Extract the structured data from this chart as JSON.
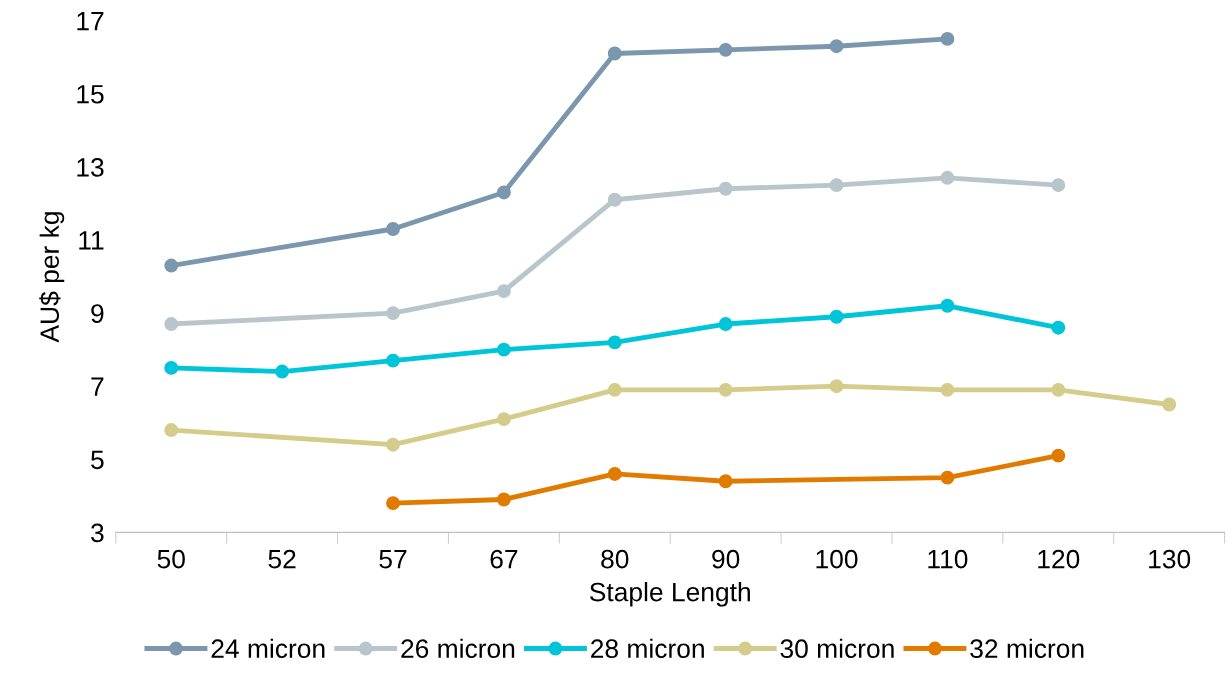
{
  "chart_data": {
    "type": "line",
    "xlabel": "Staple Length",
    "ylabel": "AU$ per kg",
    "categories": [
      "50",
      "52",
      "57",
      "67",
      "80",
      "90",
      "100",
      "110",
      "120",
      "130"
    ],
    "ylim": [
      3,
      17
    ],
    "yticks": [
      3,
      5,
      7,
      9,
      11,
      13,
      15,
      17
    ],
    "grid": false,
    "legend": "bottom",
    "marker": "circle",
    "line_style": "solid",
    "series": [
      {
        "name": "24 micron",
        "color": "#7a97ad",
        "values": [
          10.3,
          null,
          11.3,
          12.3,
          16.1,
          16.2,
          16.3,
          16.5,
          null,
          null
        ]
      },
      {
        "name": "26 micron",
        "color": "#b8c6cb",
        "values": [
          8.7,
          null,
          9.0,
          9.6,
          12.1,
          12.4,
          12.5,
          12.7,
          12.5,
          null
        ]
      },
      {
        "name": "28 micron",
        "color": "#00c4d7",
        "values": [
          7.5,
          7.4,
          7.7,
          8.0,
          8.2,
          8.7,
          8.9,
          9.2,
          8.6,
          null
        ]
      },
      {
        "name": "30 micron",
        "color": "#d4cc8a",
        "values": [
          5.8,
          null,
          5.4,
          6.1,
          6.9,
          6.9,
          7.0,
          6.9,
          6.9,
          6.5
        ]
      },
      {
        "name": "32 micron",
        "color": "#e07b00",
        "values": [
          null,
          null,
          3.8,
          3.9,
          4.6,
          4.4,
          null,
          4.5,
          5.1,
          null
        ]
      }
    ]
  }
}
